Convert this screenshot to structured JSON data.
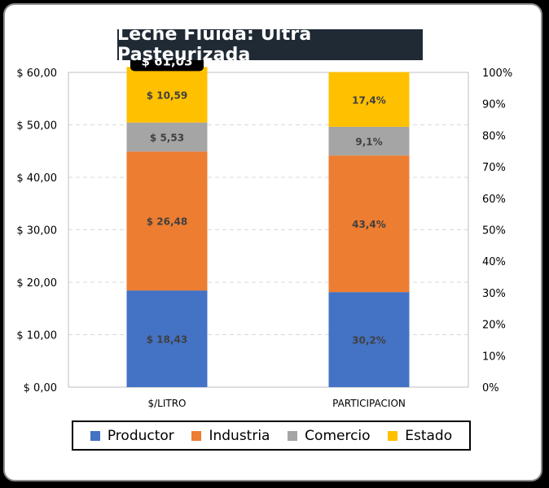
{
  "chart_data": {
    "type": "bar",
    "stacked": true,
    "title": "Leche Fluida: Ultra Pasteurizada",
    "categories": [
      "$/LITRO",
      "PARTICIPACION"
    ],
    "series": [
      {
        "name": "Productor",
        "color": "#4472c4",
        "values": [
          18.43,
          30.2
        ],
        "labels": [
          "$ 18,43",
          "30,2%"
        ]
      },
      {
        "name": "Industria",
        "color": "#ed7d31",
        "values": [
          26.48,
          43.4
        ],
        "labels": [
          "$ 26,48",
          "43,4%"
        ]
      },
      {
        "name": "Comercio",
        "color": "#a5a5a5",
        "values": [
          5.53,
          9.1
        ],
        "labels": [
          "$ 5,53",
          "9,1%"
        ]
      },
      {
        "name": "Estado",
        "color": "#ffc000",
        "values": [
          10.59,
          17.4
        ],
        "labels": [
          "$ 10,59",
          "17,4%"
        ]
      }
    ],
    "total_label": "$ 61,03",
    "y_left": {
      "min": 0,
      "max": 60,
      "ticks": [
        "$ 0,00",
        "$ 10,00",
        "$ 20,00",
        "$ 30,00",
        "$ 40,00",
        "$ 50,00",
        "$ 60,00"
      ]
    },
    "y_right": {
      "min": 0,
      "max": 100,
      "ticks": [
        "0%",
        "10%",
        "20%",
        "30%",
        "40%",
        "50%",
        "60%",
        "70%",
        "80%",
        "90%",
        "100%"
      ]
    },
    "gridlines": true,
    "legend_position": "bottom"
  }
}
